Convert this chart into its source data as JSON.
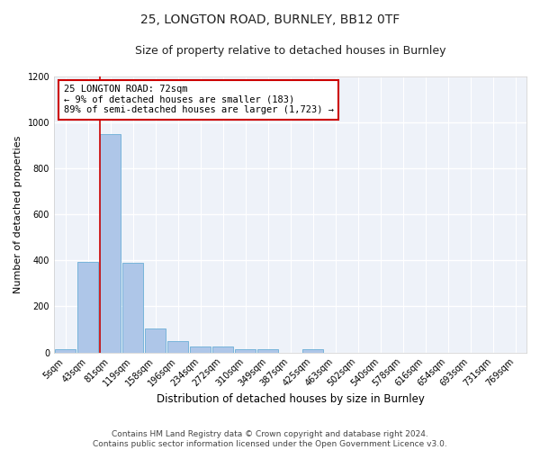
{
  "title1": "25, LONGTON ROAD, BURNLEY, BB12 0TF",
  "title2": "Size of property relative to detached houses in Burnley",
  "xlabel": "Distribution of detached houses by size in Burnley",
  "ylabel": "Number of detached properties",
  "footer": "Contains HM Land Registry data © Crown copyright and database right 2024.\nContains public sector information licensed under the Open Government Licence v3.0.",
  "bar_labels": [
    "5sqm",
    "43sqm",
    "81sqm",
    "119sqm",
    "158sqm",
    "196sqm",
    "234sqm",
    "272sqm",
    "310sqm",
    "349sqm",
    "387sqm",
    "425sqm",
    "463sqm",
    "502sqm",
    "540sqm",
    "578sqm",
    "616sqm",
    "654sqm",
    "693sqm",
    "731sqm",
    "769sqm"
  ],
  "bar_values": [
    15,
    395,
    950,
    390,
    105,
    50,
    25,
    25,
    15,
    15,
    0,
    15,
    0,
    0,
    0,
    0,
    0,
    0,
    0,
    0,
    0
  ],
  "bar_color": "#aec6e8",
  "bar_edgecolor": "#6aaed6",
  "property_line_bin": 2,
  "annotation_text": "25 LONGTON ROAD: 72sqm\n← 9% of detached houses are smaller (183)\n89% of semi-detached houses are larger (1,723) →",
  "annotation_box_color": "#ffffff",
  "annotation_box_edgecolor": "#cc0000",
  "red_line_color": "#cc0000",
  "ylim": [
    0,
    1200
  ],
  "yticks": [
    0,
    200,
    400,
    600,
    800,
    1000,
    1200
  ],
  "background_color": "#eef2f9",
  "grid_color": "#ffffff",
  "title1_fontsize": 10,
  "title2_fontsize": 9,
  "xlabel_fontsize": 8.5,
  "ylabel_fontsize": 8,
  "tick_fontsize": 7,
  "footer_fontsize": 6.5
}
